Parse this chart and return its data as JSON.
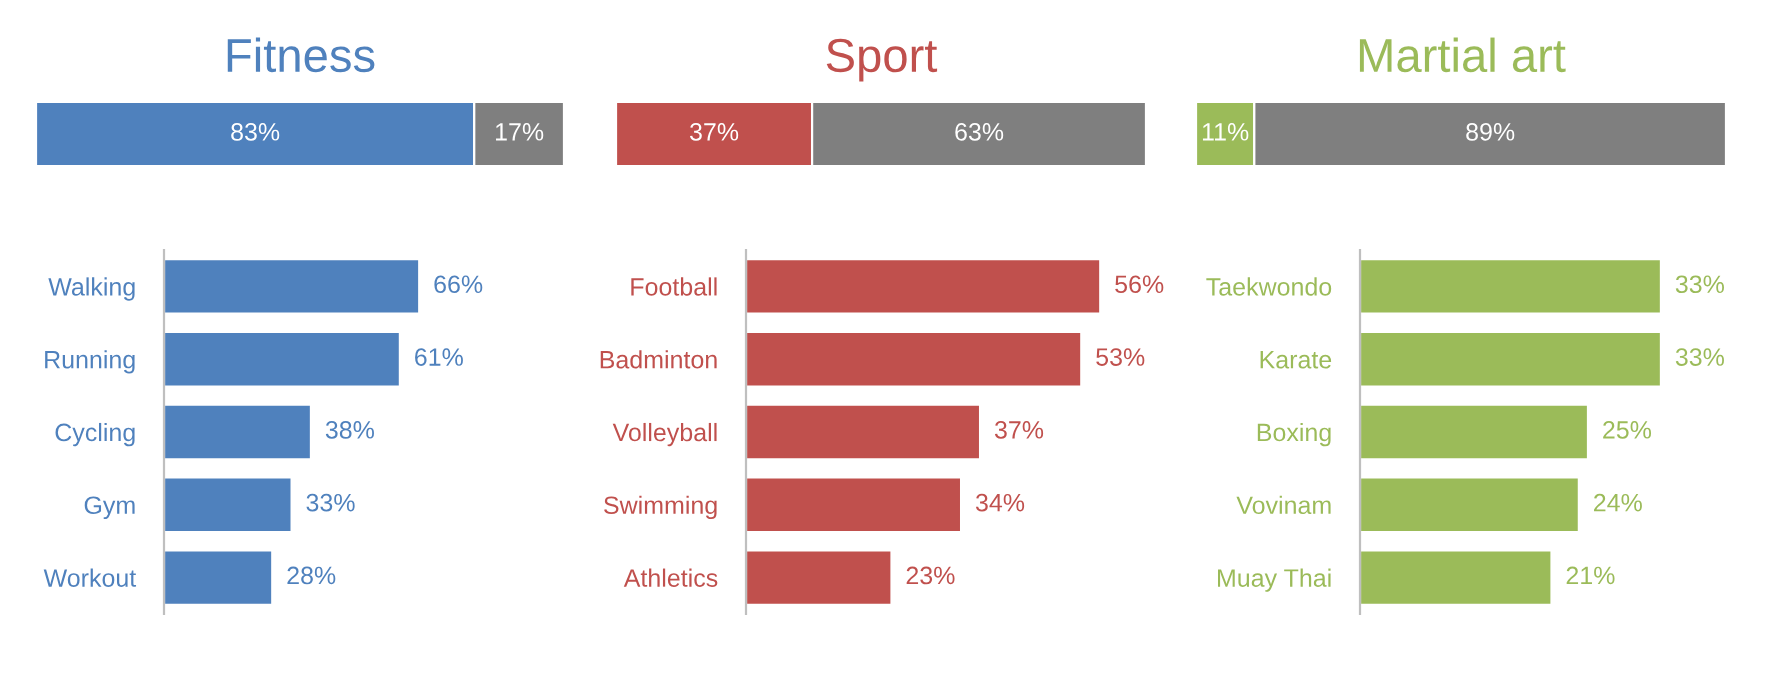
{
  "chart_data": [
    {
      "type": "bar",
      "title": "Fitness",
      "orientation": "horizontal",
      "stacked": true,
      "categories": [
        null
      ],
      "xlim": [
        0,
        100
      ],
      "tick_labels": false,
      "series": [
        {
          "color": "#4f81bd",
          "values": [
            83
          ],
          "value_labels": [
            "83%"
          ]
        },
        {
          "color": "#7f7f7f",
          "values": [
            17
          ],
          "value_labels": [
            "17%"
          ]
        }
      ]
    },
    {
      "type": "bar",
      "title": "Sport",
      "orientation": "horizontal",
      "stacked": true,
      "categories": [
        null
      ],
      "xlim": [
        0,
        100
      ],
      "tick_labels": false,
      "series": [
        {
          "color": "#c0504d",
          "values": [
            37
          ],
          "value_labels": [
            "37%"
          ]
        },
        {
          "color": "#7f7f7f",
          "values": [
            63
          ],
          "value_labels": [
            "63%"
          ]
        }
      ]
    },
    {
      "type": "bar",
      "title": "Martial art",
      "orientation": "horizontal",
      "stacked": true,
      "categories": [
        null
      ],
      "xlim": [
        0,
        100
      ],
      "tick_labels": false,
      "series": [
        {
          "color": "#9bbb59",
          "values": [
            11
          ],
          "value_labels": [
            "11%"
          ]
        },
        {
          "color": "#7f7f7f",
          "values": [
            89
          ],
          "value_labels": [
            "89%"
          ]
        }
      ]
    },
    {
      "type": "bar",
      "orientation": "horizontal",
      "categories": [
        "Walking",
        "Running",
        "Cycling",
        "Gym",
        "Workout"
      ],
      "tick_labels": "y",
      "series": [
        {
          "color": "#4f81bd",
          "values": [
            66,
            61,
            38,
            33,
            28
          ],
          "value_labels": [
            "66%",
            "61%",
            "38%",
            "33%",
            "28%"
          ]
        }
      ]
    },
    {
      "type": "bar",
      "orientation": "horizontal",
      "categories": [
        "Football",
        "Badminton",
        "Volleyball",
        "Swimming",
        "Athletics"
      ],
      "tick_labels": "y",
      "series": [
        {
          "color": "#c0504d",
          "values": [
            56,
            53,
            37,
            34,
            23
          ],
          "value_labels": [
            "56%",
            "53%",
            "37%",
            "34%",
            "23%"
          ]
        }
      ]
    },
    {
      "type": "bar",
      "orientation": "horizontal",
      "categories": [
        "Taekwondo",
        "Karate",
        "Boxing",
        "Vovinam",
        "Muay Thai"
      ],
      "tick_labels": "y",
      "series": [
        {
          "color": "#9bbb59",
          "values": [
            33,
            33,
            25,
            24,
            21
          ],
          "value_labels": [
            "33%",
            "33%",
            "25%",
            "24%",
            "21%"
          ]
        }
      ]
    }
  ]
}
